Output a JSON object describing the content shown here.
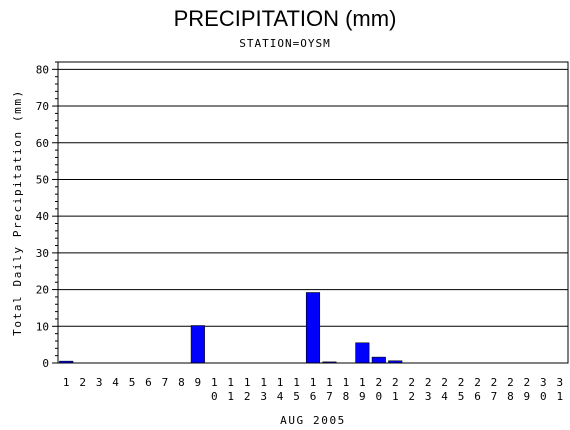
{
  "chart_data": {
    "type": "bar",
    "title": "PRECIPITATION (mm)",
    "subtitle": "STATION=OYSM",
    "xlabel": "AUG 2005",
    "ylabel": "Total Daily Precipitation (mm)",
    "ylim": [
      0,
      82
    ],
    "yticks": [
      0,
      10,
      20,
      30,
      40,
      50,
      60,
      70,
      80
    ],
    "grid": true,
    "categories": [
      "1",
      "2",
      "3",
      "4",
      "5",
      "6",
      "7",
      "8",
      "9",
      "10",
      "11",
      "12",
      "13",
      "14",
      "15",
      "16",
      "17",
      "18",
      "19",
      "20",
      "21",
      "22",
      "23",
      "24",
      "25",
      "26",
      "27",
      "28",
      "29",
      "30",
      "31"
    ],
    "values": [
      0.5,
      0,
      0,
      0,
      0,
      0,
      0,
      0,
      10.2,
      0,
      0,
      0,
      0,
      0,
      0,
      19.2,
      0.3,
      0,
      5.5,
      1.6,
      0.6,
      0,
      0,
      0,
      0,
      0,
      0,
      0,
      0,
      0,
      0
    ],
    "bar_color": "#0000ff"
  }
}
